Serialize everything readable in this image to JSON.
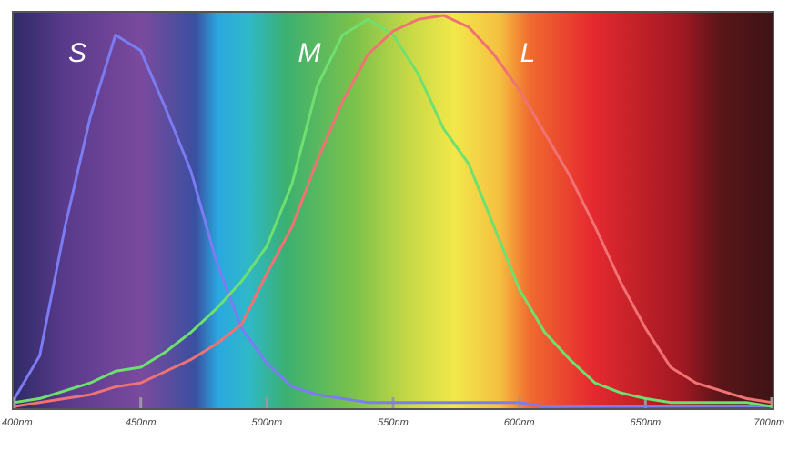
{
  "chart_data": {
    "type": "line",
    "x": [
      400,
      410,
      420,
      430,
      440,
      450,
      460,
      470,
      480,
      490,
      500,
      510,
      520,
      530,
      540,
      550,
      560,
      570,
      580,
      590,
      600,
      610,
      620,
      630,
      640,
      650,
      660,
      670,
      680,
      690,
      700
    ],
    "series": [
      {
        "name": "S",
        "color": "#7b7bf2",
        "values": [
          0.02,
          0.13,
          0.46,
          0.74,
          0.95,
          0.91,
          0.76,
          0.6,
          0.37,
          0.2,
          0.11,
          0.05,
          0.03,
          0.02,
          0.01,
          0.01,
          0.01,
          0.01,
          0.01,
          0.01,
          0.01,
          0,
          0,
          0,
          0,
          0,
          0,
          0,
          0,
          0,
          0
        ]
      },
      {
        "name": "M",
        "color": "#6fe06f",
        "values": [
          0.01,
          0.02,
          0.04,
          0.06,
          0.09,
          0.1,
          0.14,
          0.19,
          0.25,
          0.32,
          0.41,
          0.57,
          0.82,
          0.95,
          0.99,
          0.95,
          0.85,
          0.71,
          0.62,
          0.46,
          0.3,
          0.19,
          0.12,
          0.06,
          0.035,
          0.02,
          0.01,
          0.01,
          0.01,
          0.01,
          0
        ]
      },
      {
        "name": "L",
        "color": "#f07272",
        "values": [
          0,
          0.01,
          0.02,
          0.03,
          0.05,
          0.06,
          0.09,
          0.12,
          0.16,
          0.21,
          0.34,
          0.46,
          0.63,
          0.78,
          0.9,
          0.96,
          0.99,
          1,
          0.97,
          0.9,
          0.81,
          0.7,
          0.59,
          0.46,
          0.32,
          0.2,
          0.1,
          0.06,
          0.04,
          0.02,
          0.01
        ]
      }
    ],
    "xlim": [
      400,
      700
    ],
    "ylim": [
      0,
      1
    ],
    "xticks": [
      {
        "value": 400,
        "label": "400nm"
      },
      {
        "value": 450,
        "label": "450nm"
      },
      {
        "value": 500,
        "label": "500nm"
      },
      {
        "value": 550,
        "label": "550nm"
      },
      {
        "value": 600,
        "label": "600nm"
      },
      {
        "value": 650,
        "label": "650nm"
      },
      {
        "value": 700,
        "label": "700nm"
      }
    ]
  }
}
